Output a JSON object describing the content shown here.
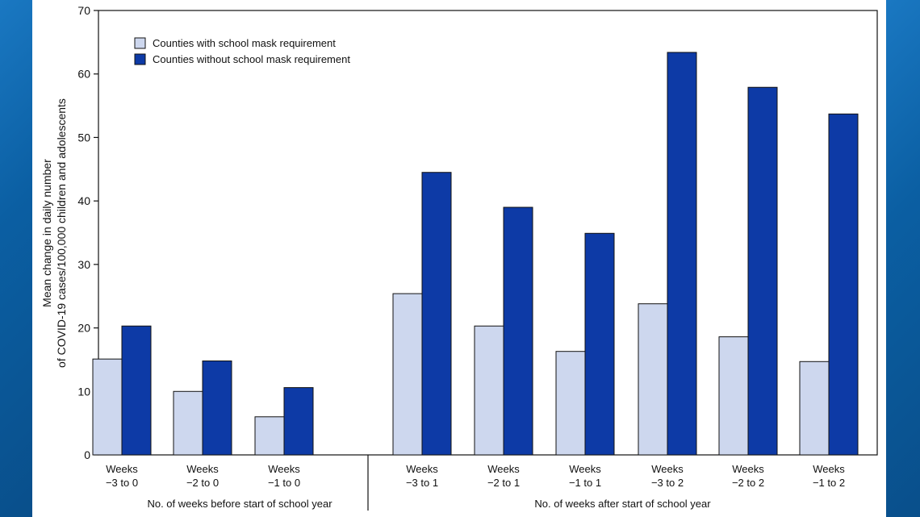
{
  "chart_data": {
    "type": "bar",
    "ylabel_lines": [
      "Mean change in daily number",
      "of COVID-19 cases/100,000 children and adolescents"
    ],
    "ylim": [
      0,
      70
    ],
    "yticks": [
      0,
      10,
      20,
      30,
      40,
      50,
      60,
      70
    ],
    "categories": [
      [
        "Weeks",
        "−3 to 0"
      ],
      [
        "Weeks",
        "−2 to 0"
      ],
      [
        "Weeks",
        "−1 to 0"
      ],
      [
        "Weeks",
        "−3 to 1"
      ],
      [
        "Weeks",
        "−2 to 1"
      ],
      [
        "Weeks",
        "−1 to 1"
      ],
      [
        "Weeks",
        "−3 to 2"
      ],
      [
        "Weeks",
        "−2 to 2"
      ],
      [
        "Weeks",
        "−1 to 2"
      ]
    ],
    "groups": [
      {
        "label": "No. of weeks before start of school year",
        "categories": [
          0,
          1,
          2
        ]
      },
      {
        "label": "No. of weeks after start of school year",
        "categories": [
          3,
          4,
          5,
          6,
          7,
          8
        ]
      }
    ],
    "series": [
      {
        "name": "Counties with school mask requirement",
        "color": "#cdd7ee",
        "values": [
          15.1,
          10.0,
          6.0,
          25.4,
          20.3,
          16.3,
          23.8,
          18.6,
          14.7
        ]
      },
      {
        "name": "Counties without school mask requirement",
        "color": "#0d3aa6",
        "values": [
          20.3,
          14.8,
          10.6,
          44.5,
          39.0,
          34.9,
          63.4,
          57.9,
          53.7
        ]
      }
    ],
    "legend_position": "top-left",
    "grid": false
  }
}
